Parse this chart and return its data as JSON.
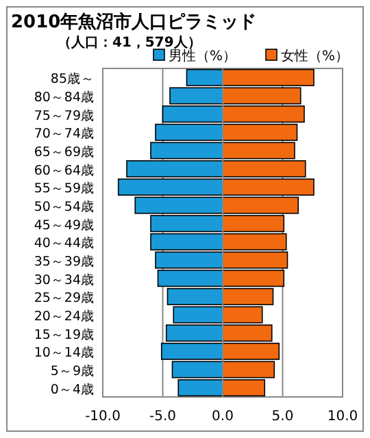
{
  "chart_data": {
    "type": "bar",
    "orientation": "horizontal",
    "stacked": true,
    "title": "2010年魚沼市人口ピラミッド",
    "subtitle": "（人口：41，579人）",
    "categories": [
      "85歳～",
      "80～84歳",
      "75～79歳",
      "70～74歳",
      "65～69歳",
      "60～64歳",
      "55～59歳",
      "50～54歳",
      "45～49歳",
      "40～44歳",
      "35～39歳",
      "30～34歳",
      "25～29歳",
      "20～24歳",
      "15～19歳",
      "10～14歳",
      "5～9歳",
      "0～4歳"
    ],
    "series": [
      {
        "name": "男性（%）",
        "color": "#1a9ad8",
        "values": [
          -3.0,
          -4.4,
          -5.0,
          -5.6,
          -6.0,
          -8.0,
          -8.7,
          -7.3,
          -6.0,
          -6.0,
          -5.6,
          -5.4,
          -4.6,
          -4.1,
          -4.7,
          -5.1,
          -4.2,
          -3.7
        ]
      },
      {
        "name": "女性（%）",
        "color": "#f26a10",
        "values": [
          7.6,
          6.5,
          6.8,
          6.2,
          6.0,
          6.9,
          7.6,
          6.3,
          5.1,
          5.3,
          5.4,
          5.1,
          4.2,
          3.3,
          4.1,
          4.7,
          4.3,
          3.5
        ]
      }
    ],
    "xlim": [
      -10,
      10
    ],
    "xticks": [
      {
        "value": -10,
        "label": "-10.0"
      },
      {
        "value": -5,
        "label": "-5.0"
      },
      {
        "value": 0,
        "label": "0.0"
      },
      {
        "value": 5,
        "label": "5.0"
      },
      {
        "value": 10,
        "label": "10.0"
      }
    ],
    "grid": "x",
    "legend": "top right"
  }
}
